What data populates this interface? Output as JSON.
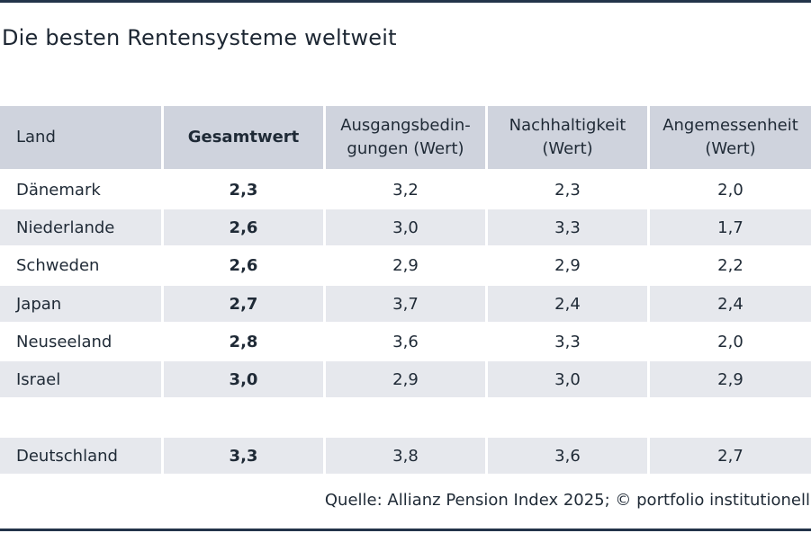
{
  "title": "Die besten Rentensysteme weltweit",
  "source": "Quelle: Allianz Pension Index 2025; © portfolio institutionell",
  "colors": {
    "rule": "#23344a",
    "header_bg": "#cfd3dd",
    "shaded_row_bg": "#e6e8ed"
  },
  "chart_data": {
    "type": "table",
    "title": "Die besten Rentensysteme weltweit",
    "columns": [
      "Land",
      "Gesamtwert",
      "Ausgangsbedin-\ngungen (Wert)",
      "Nachhaltigkeit\n(Wert)",
      "Angemessenheit\n(Wert)"
    ],
    "rows": [
      [
        "Dänemark",
        "2,3",
        "3,2",
        "2,3",
        "2,0"
      ],
      [
        "Niederlande",
        "2,6",
        "3,0",
        "3,3",
        "1,7"
      ],
      [
        "Schweden",
        "2,6",
        "2,9",
        "2,9",
        "2,2"
      ],
      [
        "Japan",
        "2,7",
        "3,7",
        "2,4",
        "2,4"
      ],
      [
        "Neuseeland",
        "2,8",
        "3,6",
        "3,3",
        "2,0"
      ],
      [
        "Israel",
        "3,0",
        "2,9",
        "3,0",
        "2,9"
      ],
      [
        "Deutschland",
        "3,3",
        "3,8",
        "3,6",
        "2,7"
      ]
    ]
  }
}
